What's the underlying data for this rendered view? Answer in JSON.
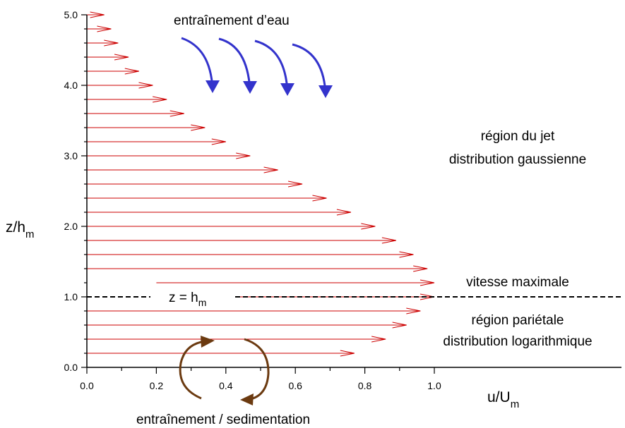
{
  "chart_data": {
    "type": "quiver",
    "xlabel": "u/U",
    "xlabel_sub": "m",
    "ylabel": "z/h",
    "ylabel_sub": "m",
    "xlim": [
      0.0,
      1.0
    ],
    "ylim": [
      0.0,
      5.0
    ],
    "x_ticks": [
      "0.0",
      "0.2",
      "0.4",
      "0.6",
      "0.8",
      "1.0"
    ],
    "y_ticks": [
      "0.0",
      "1.0",
      "2.0",
      "3.0",
      "4.0",
      "5.0"
    ],
    "arrow_color": "#cc0000",
    "arrows": [
      {
        "z": 0.2,
        "u": 0.77
      },
      {
        "z": 0.4,
        "u": 0.86
      },
      {
        "z": 0.6,
        "u": 0.92
      },
      {
        "z": 0.8,
        "u": 0.96
      },
      {
        "z": 1.0,
        "u": 1.0
      },
      {
        "z": 1.2,
        "u": 1.0
      },
      {
        "z": 1.4,
        "u": 0.98
      },
      {
        "z": 1.6,
        "u": 0.94
      },
      {
        "z": 1.8,
        "u": 0.89
      },
      {
        "z": 2.0,
        "u": 0.83
      },
      {
        "z": 2.2,
        "u": 0.76
      },
      {
        "z": 2.4,
        "u": 0.69
      },
      {
        "z": 2.6,
        "u": 0.62
      },
      {
        "z": 2.8,
        "u": 0.55
      },
      {
        "z": 3.0,
        "u": 0.47
      },
      {
        "z": 3.2,
        "u": 0.4
      },
      {
        "z": 3.4,
        "u": 0.34
      },
      {
        "z": 3.6,
        "u": 0.28
      },
      {
        "z": 3.8,
        "u": 0.23
      },
      {
        "z": 4.0,
        "u": 0.19
      },
      {
        "z": 4.2,
        "u": 0.15
      },
      {
        "z": 4.4,
        "u": 0.12
      },
      {
        "z": 4.6,
        "u": 0.09
      },
      {
        "z": 4.8,
        "u": 0.07
      },
      {
        "z": 5.0,
        "u": 0.05
      }
    ],
    "reference_line": {
      "z": 1.0,
      "label_left": "z = h",
      "label_left_sub": "m",
      "label_right": "vitesse maximale"
    },
    "annotations": {
      "top": "entraînement d’eau",
      "jet_line1": "région du jet",
      "jet_line2": "distribution gaussienne",
      "wall_line1": "région pariétale",
      "wall_line2": "distribution logarithmique",
      "bottom": "entraînement / sedimentation"
    },
    "entrainment_arrow_color": "#3333cc",
    "sedimentation_arrow_color": "#6b3a10"
  }
}
